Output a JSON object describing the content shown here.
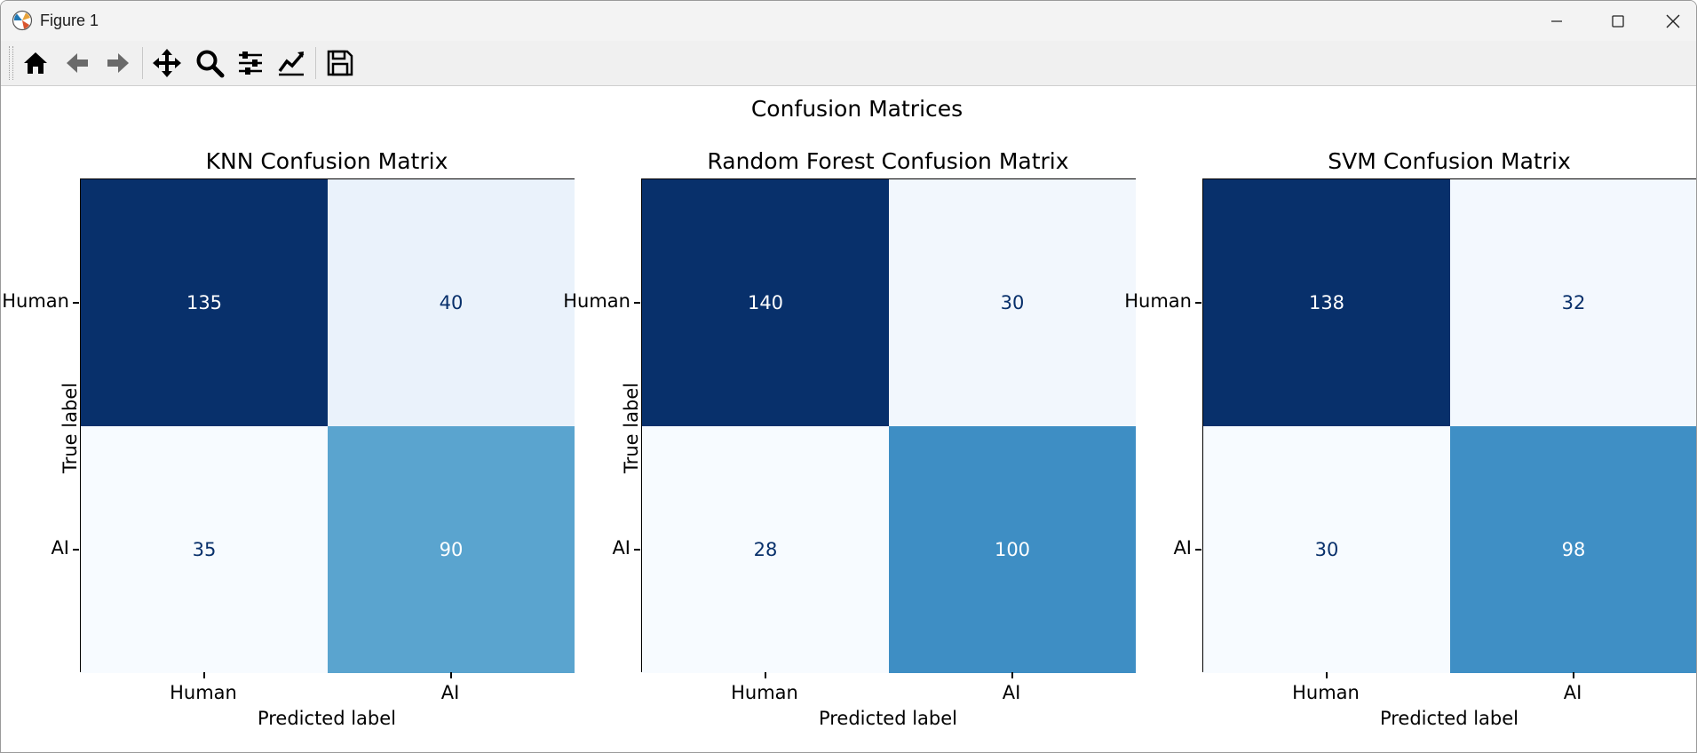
{
  "window": {
    "title": "Figure 1"
  },
  "toolbar": {
    "buttons": [
      {
        "name": "home-icon",
        "label": "Home"
      },
      {
        "name": "back-icon",
        "label": "Back"
      },
      {
        "name": "forward-icon",
        "label": "Forward"
      },
      {
        "name": "pan-icon",
        "label": "Pan"
      },
      {
        "name": "zoom-icon",
        "label": "Zoom"
      },
      {
        "name": "configure-subplots-icon",
        "label": "Subplots"
      },
      {
        "name": "edit-axis-icon",
        "label": "Customize"
      },
      {
        "name": "save-icon",
        "label": "Save"
      }
    ]
  },
  "figure": {
    "suptitle": "Confusion Matrices"
  },
  "colors": {
    "dark": "#08306b",
    "light_text": "#08306b",
    "knn_tr": "#eaf2fb",
    "knn_bl": "#f7fbff",
    "knn_br": "#5aa4cf",
    "rf_tr": "#f2f7fd",
    "rf_bl": "#f7fbff",
    "rf_br": "#3e8ec4",
    "svm_tr": "#f3f8fe",
    "svm_bl": "#f7fbff",
    "svm_br": "#3f8fc5"
  },
  "chart_data": [
    {
      "type": "heatmap",
      "title": "KNN Confusion Matrix",
      "xlabel": "Predicted label",
      "ylabel": "True label",
      "x_categories": [
        "Human",
        "AI"
      ],
      "y_categories": [
        "Human",
        "AI"
      ],
      "values": [
        [
          135,
          40
        ],
        [
          35,
          90
        ]
      ],
      "colormap": "Blues"
    },
    {
      "type": "heatmap",
      "title": "Random Forest Confusion Matrix",
      "xlabel": "Predicted label",
      "ylabel": "True label",
      "x_categories": [
        "Human",
        "AI"
      ],
      "y_categories": [
        "Human",
        "AI"
      ],
      "values": [
        [
          140,
          30
        ],
        [
          28,
          100
        ]
      ],
      "colormap": "Blues"
    },
    {
      "type": "heatmap",
      "title": "SVM Confusion Matrix",
      "xlabel": "Predicted label",
      "ylabel": "",
      "x_categories": [
        "Human",
        "AI"
      ],
      "y_categories": [
        "Human",
        "AI"
      ],
      "values": [
        [
          138,
          32
        ],
        [
          30,
          98
        ]
      ],
      "colormap": "Blues"
    }
  ]
}
